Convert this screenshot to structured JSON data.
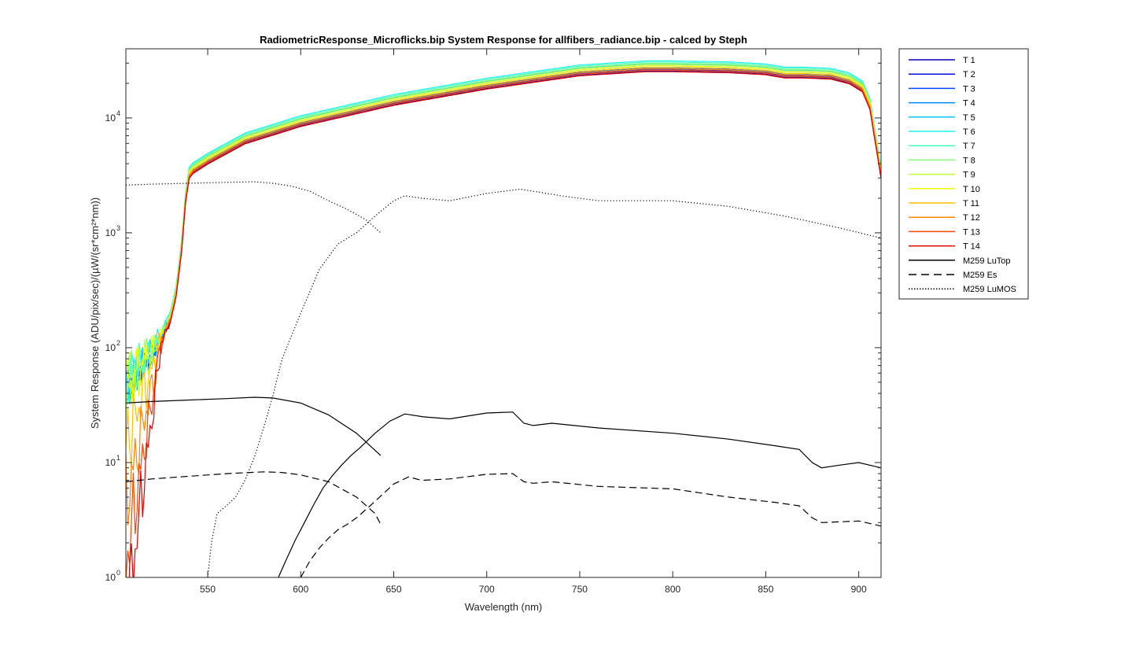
{
  "chart_data": {
    "type": "line",
    "title": "RadiometricResponse_Microflicks.bip  System Response for allfibers_radiance.bip - calced by Steph",
    "xlabel": "Wavelength (nm)",
    "ylabel": "System Response (ADU/pix/sec)/(µW/(sr*cm²*nm))",
    "xlim": [
      506,
      912
    ],
    "ylim": [
      1,
      40000
    ],
    "yscale": "log",
    "xticks": [
      550,
      600,
      650,
      700,
      750,
      800,
      850,
      900
    ],
    "xtick_labels": [
      "550",
      "600",
      "650",
      "700",
      "750",
      "800",
      "850",
      "900"
    ],
    "yticks": [
      1,
      10,
      100,
      1000,
      10000
    ],
    "ytick_labels": [
      {
        "base": "10",
        "exp": "0"
      },
      {
        "base": "10",
        "exp": "1"
      },
      {
        "base": "10",
        "exp": "2"
      },
      {
        "base": "10",
        "exp": "3"
      },
      {
        "base": "10",
        "exp": "4"
      }
    ],
    "legend_position": "outside-right",
    "response_shape": {
      "x": [
        506,
        510,
        515,
        520,
        525,
        530,
        533,
        536,
        538,
        540,
        542,
        550,
        570,
        600,
        650,
        700,
        750,
        785,
        800,
        830,
        850,
        860,
        870,
        885,
        895,
        902,
        906,
        909,
        912
      ],
      "y": [
        40,
        50,
        65,
        80,
        110,
        170,
        280,
        700,
        1800,
        3000,
        3300,
        4000,
        6000,
        8500,
        13000,
        18000,
        23500,
        25500,
        25500,
        25000,
        24000,
        22500,
        22500,
        22000,
        20000,
        17000,
        12000,
        6000,
        3000
      ]
    },
    "series": [
      {
        "name": "T 1",
        "color": "#0000b8",
        "scale": 1.0,
        "style": "solid"
      },
      {
        "name": "T 2",
        "color": "#0010e0",
        "scale": 1.03,
        "style": "solid"
      },
      {
        "name": "T 3",
        "color": "#0048ff",
        "scale": 1.07,
        "style": "solid"
      },
      {
        "name": "T 4",
        "color": "#0088ff",
        "scale": 1.11,
        "style": "solid"
      },
      {
        "name": "T 5",
        "color": "#00c4ff",
        "scale": 1.16,
        "style": "solid"
      },
      {
        "name": "T 6",
        "color": "#1ef0f0",
        "scale": 1.23,
        "style": "solid"
      },
      {
        "name": "T 7",
        "color": "#46ffb8",
        "scale": 1.2,
        "style": "solid"
      },
      {
        "name": "T 8",
        "color": "#86ff78",
        "scale": 1.17,
        "style": "solid"
      },
      {
        "name": "T 9",
        "color": "#c0ff3c",
        "scale": 1.14,
        "style": "solid"
      },
      {
        "name": "T 10",
        "color": "#f0ff00",
        "scale": 1.11,
        "style": "solid"
      },
      {
        "name": "T 11",
        "color": "#ffc000",
        "scale": 1.08,
        "style": "solid"
      },
      {
        "name": "T 12",
        "color": "#ff8400",
        "scale": 1.05,
        "style": "solid"
      },
      {
        "name": "T 13",
        "color": "#ff4400",
        "scale": 1.02,
        "style": "solid"
      },
      {
        "name": "T 14",
        "color": "#e00000",
        "scale": 0.99,
        "style": "solid"
      },
      {
        "name": "M259 LuTop",
        "color": "#000000",
        "style": "solid",
        "segments": [
          {
            "x": [
              506,
              520,
              540,
              560,
              575,
              585,
              600,
              615,
              630,
              643
            ],
            "y": [
              33,
              34,
              35,
              36,
              37,
              36.5,
              33,
              26,
              18,
              11.5
            ]
          },
          {
            "x": [
              588,
              592,
              597,
              602,
              607,
              612,
              617,
              622,
              627,
              632,
              640,
              648,
              656,
              666,
              680,
              700,
              714,
              720,
              725,
              735,
              760,
              800,
              830,
              855,
              868,
              875,
              880,
              890,
              900,
              912
            ],
            "y": [
              1,
              1.4,
              2.1,
              3.0,
              4.3,
              6.0,
              7.7,
              9.5,
              11.5,
              13.5,
              18,
              23,
              26.5,
              25,
              24,
              27,
              27.5,
              22,
              21,
              22,
              20,
              18,
              16,
              14,
              13,
              10,
              9,
              9.5,
              10,
              9
            ]
          }
        ]
      },
      {
        "name": "M259 Es",
        "color": "#000000",
        "style": "dashed",
        "segments": [
          {
            "x": [
              506,
              520,
              540,
              560,
              580,
              590,
              600,
              615,
              630,
              640,
              643
            ],
            "y": [
              6.8,
              7.2,
              7.6,
              8.0,
              8.3,
              8.2,
              7.8,
              6.8,
              5.0,
              3.6,
              2.9
            ]
          },
          {
            "x": [
              600,
              605,
              610,
              615,
              620,
              625,
              630,
              640,
              650,
              658,
              665,
              680,
              700,
              714,
              720,
              725,
              735,
              760,
              800,
              830,
              855,
              868,
              875,
              880,
              900,
              912
            ],
            "y": [
              1,
              1.4,
              1.8,
              2.2,
              2.6,
              2.9,
              3.3,
              4.6,
              6.5,
              7.5,
              7.0,
              7.2,
              7.9,
              8.0,
              6.8,
              6.6,
              6.8,
              6.2,
              5.9,
              5.0,
              4.5,
              4.2,
              3.3,
              3.0,
              3.1,
              2.8
            ]
          }
        ]
      },
      {
        "name": "M259 LuMOS",
        "color": "#000000",
        "style": "dotted",
        "segments": [
          {
            "x": [
              506,
              520,
              540,
              560,
              575,
              585,
              595,
              605,
              615,
              625,
              635,
              643
            ],
            "y": [
              2600,
              2650,
              2700,
              2750,
              2780,
              2700,
              2550,
              2300,
              1900,
              1600,
              1300,
              1000
            ]
          },
          {
            "x": [
              550,
              552,
              555,
              560,
              565,
              570,
              575,
              580,
              585,
              590,
              600,
              610,
              620,
              630,
              640,
              650,
              656,
              665,
              680,
              700,
              718,
              740,
              760,
              800,
              830,
              860,
              890,
              912
            ],
            "y": [
              1,
              2.0,
              3.6,
              4.2,
              5,
              7,
              11,
              20,
              38,
              80,
              200,
              480,
              800,
              1000,
              1400,
              1900,
              2100,
              2000,
              1900,
              2200,
              2400,
              2100,
              1900,
              1900,
              1700,
              1400,
              1100,
              900
            ]
          }
        ]
      }
    ]
  }
}
